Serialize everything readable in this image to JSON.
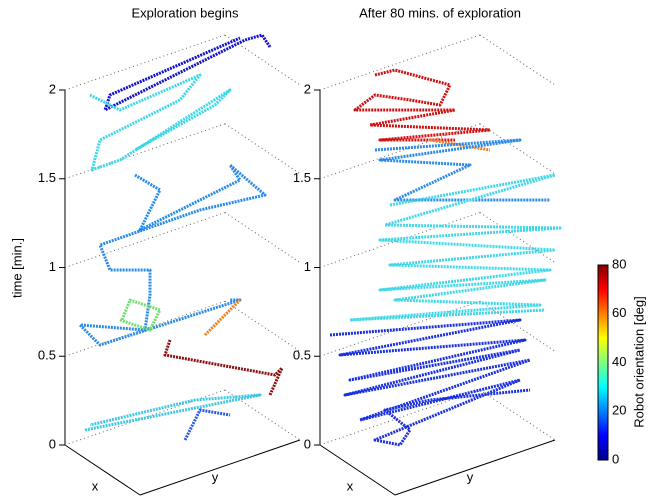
{
  "chart_data": [
    {
      "type": "trajectory3d",
      "title": "Exploration begins",
      "xlabel": "x",
      "ylabel": "y",
      "zlabel": "time [min.]",
      "zlim": [
        0,
        2
      ],
      "zticks": [
        0,
        0.5,
        1,
        1.5,
        2
      ],
      "grid": true
    },
    {
      "type": "trajectory3d",
      "title": "After 80 mins. of exploration",
      "xlabel": "x",
      "ylabel": "y",
      "zlim": [
        0,
        2
      ],
      "zticks": [
        0,
        0.5,
        1,
        1.5,
        2
      ],
      "grid": true
    }
  ],
  "colorbar": {
    "label": "Robot orientation [deg]",
    "lim": [
      0,
      80
    ],
    "ticks": [
      0,
      20,
      40,
      60,
      80
    ]
  }
}
